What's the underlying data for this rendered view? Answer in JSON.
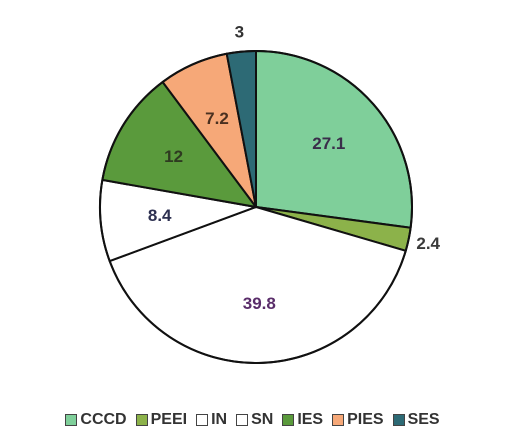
{
  "chart_data": {
    "type": "pie",
    "title": "",
    "start_angle_deg": 0,
    "direction": "clockwise",
    "legend_position": "bottom",
    "slices": [
      {
        "label": "CCCD",
        "value": 27.1,
        "display": "27.1",
        "color": "#7fcf9a",
        "label_color": "#3a2d4a",
        "label_pos": "inside"
      },
      {
        "label": "PEEI",
        "value": 2.4,
        "display": "2.4",
        "color": "#8cb24a",
        "label_color": "#3a3a3a",
        "label_pos": "outside"
      },
      {
        "label": "IN",
        "value": 0.0,
        "display": "",
        "color": "#ffffff",
        "label_color": "#3a3a3a",
        "label_pos": "none"
      },
      {
        "label": "SN",
        "value": 39.8,
        "display": "39.8",
        "color": "#ffffff",
        "label_color": "#5a2d6a",
        "label_pos": "inside"
      },
      {
        "label": "IN",
        "value": 8.4,
        "display": "8.4",
        "color": "#ffffff",
        "label_color": "#2d3050",
        "label_pos": "inside"
      },
      {
        "label": "IES",
        "value": 12,
        "display": "12",
        "color": "#5a9a3c",
        "label_color": "#2e3a20",
        "label_pos": "inside"
      },
      {
        "label": "PIES",
        "value": 7.2,
        "display": "7.2",
        "color": "#f6a878",
        "label_color": "#4a3020",
        "label_pos": "inside"
      },
      {
        "label": "SES",
        "value": 3,
        "display": "3",
        "color": "#2d6a75",
        "label_color": "#333333",
        "label_pos": "outside"
      }
    ],
    "legend": [
      {
        "label": "CCCD",
        "color": "#7fcf9a"
      },
      {
        "label": "PEEI",
        "color": "#8cb24a"
      },
      {
        "label": "IN",
        "color": "#ffffff"
      },
      {
        "label": "SN",
        "color": "#ffffff"
      },
      {
        "label": "IES",
        "color": "#5a9a3c"
      },
      {
        "label": "PIES",
        "color": "#f6a878"
      },
      {
        "label": "SES",
        "color": "#2d6a75"
      }
    ]
  }
}
